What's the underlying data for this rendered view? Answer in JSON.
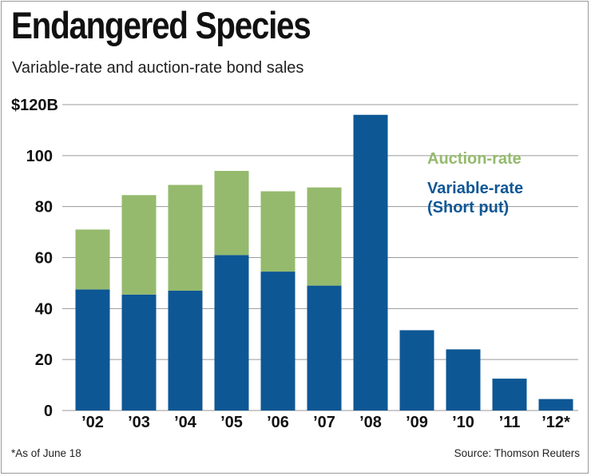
{
  "header": {
    "title": "Endangered Species",
    "subtitle": "Variable-rate and auction-rate bond sales"
  },
  "footer": {
    "footnote": "*As of June 18",
    "source": "Source: Thomson Reuters"
  },
  "colors": {
    "variable": "#0e5795",
    "auction": "#95ba6d",
    "grid": "#9a9a9a",
    "text": "#111111"
  },
  "chart_data": {
    "type": "bar",
    "stacked": true,
    "title": "Endangered Species",
    "subtitle": "Variable-rate and auction-rate bond sales",
    "xlabel": "",
    "ylabel": "",
    "ylim": [
      0,
      120
    ],
    "y_ticks": [
      0,
      20,
      40,
      60,
      80,
      100,
      120
    ],
    "y_tick_labels": [
      "0",
      "20",
      "40",
      "60",
      "80",
      "100",
      "$120B"
    ],
    "categories": [
      "’02",
      "’03",
      "’04",
      "’05",
      "’06",
      "’07",
      "’08",
      "’09",
      "’10",
      "’11",
      "’12*"
    ],
    "series": [
      {
        "name": "Variable-rate (Short put)",
        "legend_lines": [
          "Variable-rate",
          "(Short put)"
        ],
        "color": "#0e5795",
        "values": [
          47.5,
          45.5,
          47,
          61,
          54.5,
          49,
          116,
          31.5,
          24,
          12.5,
          4.5
        ]
      },
      {
        "name": "Auction-rate",
        "legend_lines": [
          "Auction-rate"
        ],
        "color": "#95ba6d",
        "values": [
          23.5,
          39,
          41.5,
          33,
          31.5,
          38.5,
          0,
          0,
          0,
          0,
          0
        ]
      }
    ],
    "grid": true,
    "legend": "top-right"
  }
}
